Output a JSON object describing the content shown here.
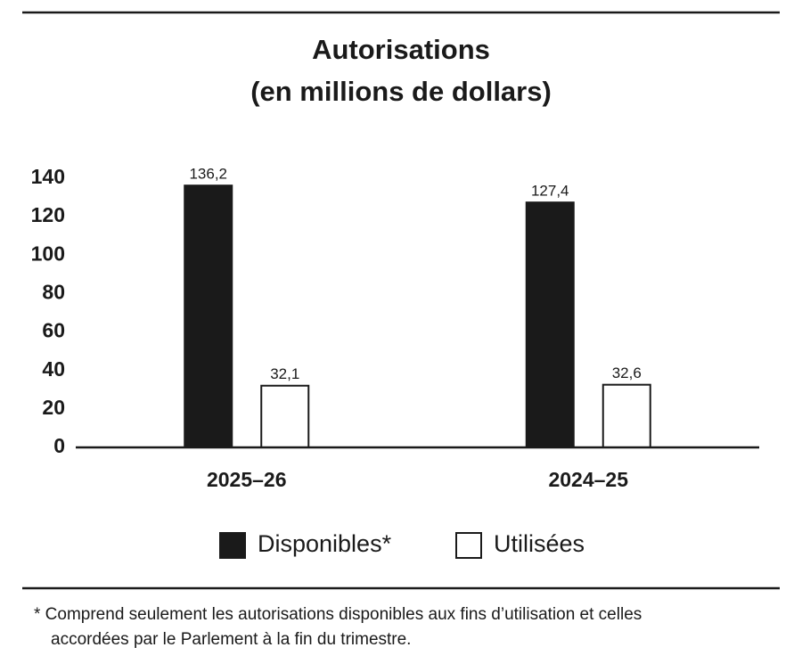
{
  "chart_data": {
    "type": "bar",
    "title": [
      "Autorisations",
      "(en millions de dollars)"
    ],
    "categories": [
      "2025–26",
      "2024–25"
    ],
    "series": [
      {
        "name": "Disponibles*",
        "color": "#1a1a1a",
        "values": [
          136.2,
          127.4
        ],
        "value_labels": [
          "136,2",
          "127,4"
        ]
      },
      {
        "name": "Utilisées",
        "color": "#ffffff",
        "values": [
          32.1,
          32.6
        ],
        "value_labels": [
          "32,1",
          "32,6"
        ]
      }
    ],
    "ylim": [
      0,
      140
    ],
    "yticks": [
      0,
      20,
      40,
      60,
      80,
      100,
      120,
      140
    ],
    "grid": false,
    "footnote": [
      "* Comprend seulement les autorisations disponibles aux fins d’utilisation et celles",
      "accordées par le Parlement à la fin du trimestre."
    ]
  }
}
